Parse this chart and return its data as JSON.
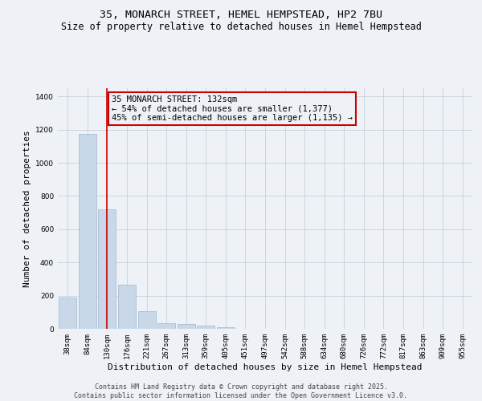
{
  "title_line1": "35, MONARCH STREET, HEMEL HEMPSTEAD, HP2 7BU",
  "title_line2": "Size of property relative to detached houses in Hemel Hempstead",
  "xlabel": "Distribution of detached houses by size in Hemel Hempstead",
  "ylabel": "Number of detached properties",
  "categories": [
    "38sqm",
    "84sqm",
    "130sqm",
    "176sqm",
    "221sqm",
    "267sqm",
    "313sqm",
    "359sqm",
    "405sqm",
    "451sqm",
    "497sqm",
    "542sqm",
    "588sqm",
    "634sqm",
    "680sqm",
    "726sqm",
    "772sqm",
    "817sqm",
    "863sqm",
    "909sqm",
    "955sqm"
  ],
  "values": [
    190,
    1175,
    720,
    265,
    105,
    35,
    30,
    20,
    8,
    0,
    0,
    0,
    0,
    0,
    0,
    0,
    0,
    0,
    0,
    0,
    0
  ],
  "bar_color": "#c8d8e8",
  "bar_edge_color": "#a0b8cc",
  "vline_x": 2,
  "vline_color": "#cc0000",
  "annotation_line1": "35 MONARCH STREET: 132sqm",
  "annotation_line2": "← 54% of detached houses are smaller (1,377)",
  "annotation_line3": "45% of semi-detached houses are larger (1,135) →",
  "annotation_box_color": "#cc0000",
  "ylim": [
    0,
    1450
  ],
  "yticks": [
    0,
    200,
    400,
    600,
    800,
    1000,
    1200,
    1400
  ],
  "bg_color": "#eef2f6",
  "grid_color": "#c8d0dc",
  "footer_line1": "Contains HM Land Registry data © Crown copyright and database right 2025.",
  "footer_line2": "Contains public sector information licensed under the Open Government Licence v3.0.",
  "title_fontsize": 9.5,
  "subtitle_fontsize": 8.5,
  "axis_label_fontsize": 8,
  "tick_fontsize": 6.5,
  "annotation_fontsize": 7.5,
  "footer_fontsize": 6
}
